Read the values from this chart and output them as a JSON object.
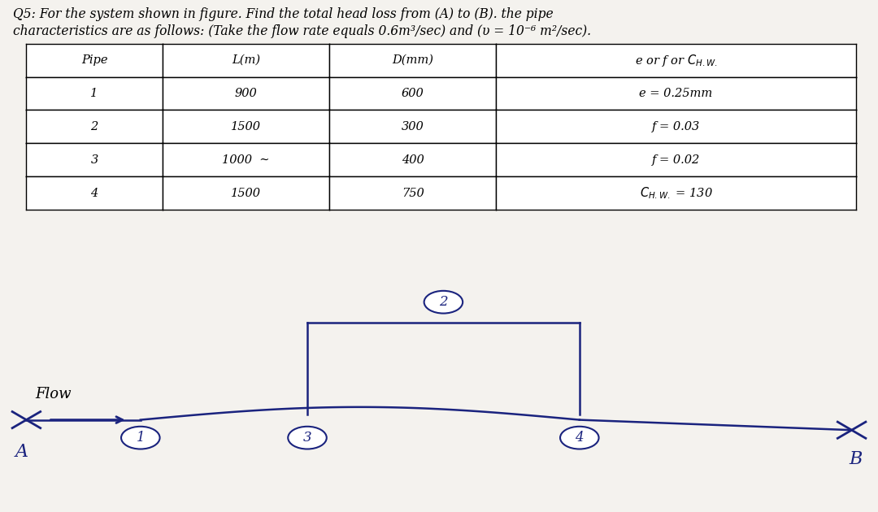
{
  "title_line1": "Q5: For the system shown in figure. Find the total head loss from (A) to (B). the pipe",
  "title_line2": "characteristics are as follows: (Take the flow rate equals 0.6m³/sec) and (υ = 10⁻⁶ m²/sec).",
  "table_headers": [
    "Pipe",
    "L(m)",
    "D(mm)",
    "e or f or C_{H.W.}"
  ],
  "table_col0": [
    "1",
    "2",
    "3",
    "4"
  ],
  "table_col1": [
    "900",
    "1500",
    "1000  ∼",
    "1500"
  ],
  "table_col2": [
    "600",
    "300",
    "400",
    "750"
  ],
  "table_col3": [
    "e = 0.25mm",
    "f = 0.03",
    "f = 0.02",
    "C_{H.W.} = 130"
  ],
  "bg_color": "#f4f2ee",
  "white": "#ffffff",
  "pipe_color": "#1a237e",
  "black": "#000000",
  "flow_label": "Flow",
  "node_A": "A",
  "node_B": "B"
}
